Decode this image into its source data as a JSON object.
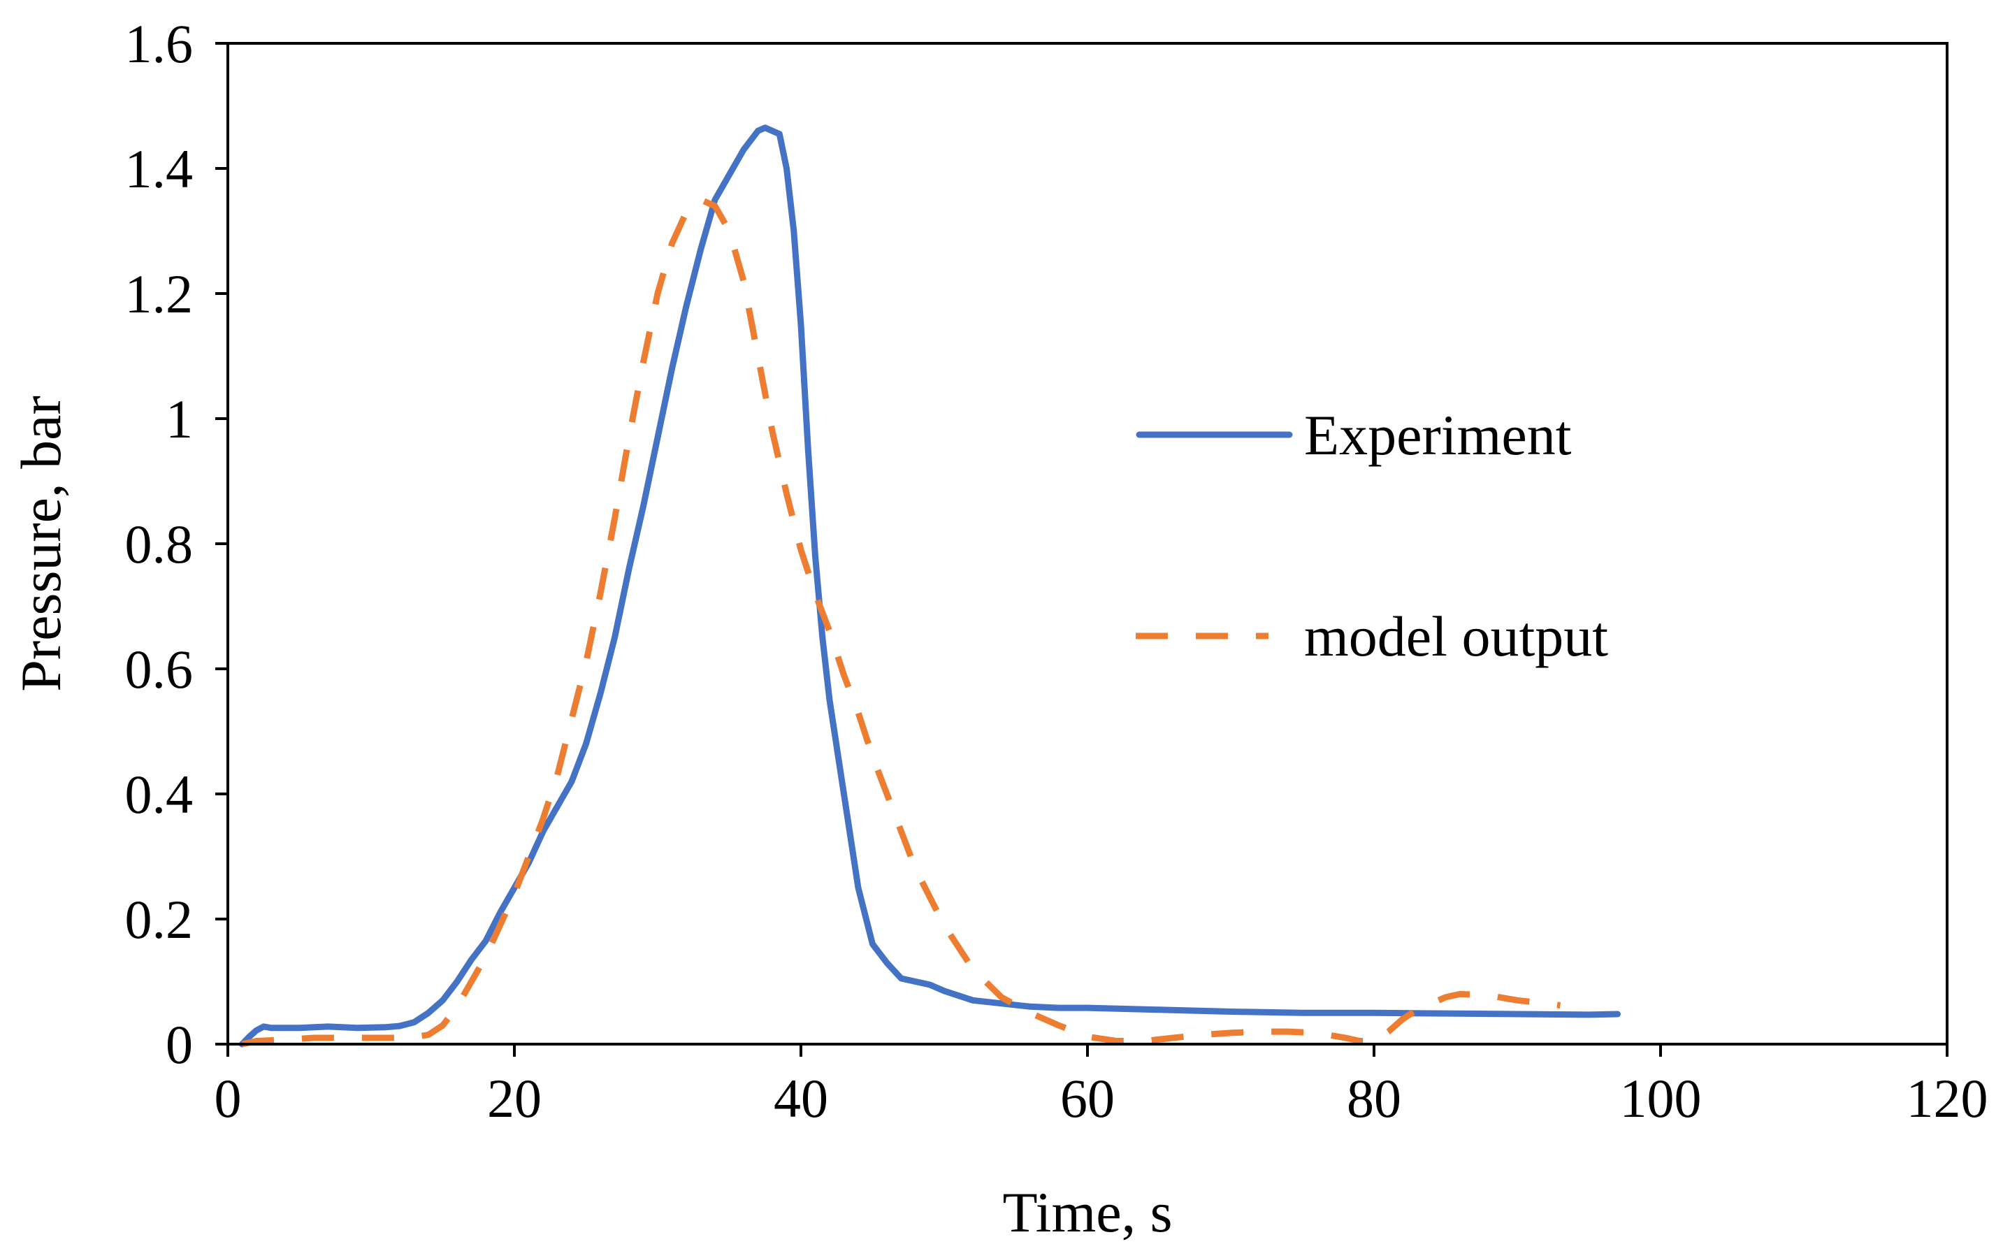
{
  "colors": {
    "experiment": "#4472C4",
    "model": "#ED7D31",
    "axis": "#000000",
    "background": "#ffffff"
  },
  "chart_data": {
    "type": "line",
    "title": "",
    "xlabel": "Time, s",
    "ylabel": "Pressure, bar",
    "xlim": [
      0,
      120
    ],
    "ylim": [
      0,
      1.6
    ],
    "xticks": [
      0,
      20,
      40,
      60,
      80,
      100,
      120
    ],
    "yticks": [
      0,
      0.2,
      0.4,
      0.6,
      0.8,
      1,
      1.2,
      1.4,
      1.6
    ],
    "xtick_labels": [
      "0",
      "20",
      "40",
      "60",
      "80",
      "100",
      "120"
    ],
    "ytick_labels": [
      "0",
      "0.2",
      "0.4",
      "0.6",
      "0.8",
      "1",
      "1.2",
      "1.4",
      "1.6"
    ],
    "grid": false,
    "legend_position": "center-right",
    "series": [
      {
        "name": "Experiment",
        "style": "solid",
        "color": "#4472C4",
        "x": [
          1,
          1.5,
          2,
          2.5,
          3,
          5,
          7,
          9,
          11,
          12,
          13,
          14,
          15,
          16,
          17,
          18,
          19,
          20,
          21,
          22,
          23,
          24,
          25,
          26,
          27,
          28,
          29,
          30,
          31,
          32,
          33,
          34,
          35,
          36,
          37,
          37.5,
          38,
          38.5,
          39,
          39.5,
          40,
          40.5,
          41,
          41.5,
          42,
          43,
          44,
          45,
          46,
          47,
          48,
          49,
          50,
          52,
          54,
          56,
          58,
          60,
          65,
          70,
          75,
          80,
          85,
          90,
          95,
          97
        ],
        "y": [
          0,
          0.012,
          0.022,
          0.028,
          0.026,
          0.026,
          0.028,
          0.026,
          0.027,
          0.029,
          0.035,
          0.05,
          0.07,
          0.1,
          0.135,
          0.165,
          0.21,
          0.25,
          0.29,
          0.34,
          0.38,
          0.42,
          0.48,
          0.56,
          0.65,
          0.76,
          0.86,
          0.97,
          1.08,
          1.18,
          1.27,
          1.35,
          1.39,
          1.43,
          1.46,
          1.465,
          1.46,
          1.455,
          1.4,
          1.3,
          1.15,
          0.95,
          0.78,
          0.65,
          0.55,
          0.4,
          0.25,
          0.16,
          0.13,
          0.105,
          0.1,
          0.095,
          0.085,
          0.07,
          0.065,
          0.06,
          0.058,
          0.058,
          0.055,
          0.052,
          0.05,
          0.05,
          0.049,
          0.048,
          0.047,
          0.048
        ]
      },
      {
        "name": "model output",
        "style": "dashed",
        "color": "#ED7D31",
        "x": [
          1,
          2,
          4,
          6,
          8,
          10,
          12,
          13,
          14,
          15,
          16,
          17,
          18,
          19,
          20,
          21,
          22,
          23,
          24,
          25,
          26,
          27,
          28,
          29,
          30,
          31,
          32,
          33,
          34,
          35,
          36,
          37,
          38,
          39,
          40,
          41,
          42,
          43,
          44,
          45,
          46,
          47,
          48,
          50,
          52,
          54,
          56,
          58,
          60,
          62,
          64,
          66,
          68,
          70,
          72,
          74,
          76,
          78,
          79,
          80,
          81,
          82,
          83,
          84,
          85,
          86,
          88,
          90,
          92,
          93
        ],
        "y": [
          0,
          0.005,
          0.007,
          0.01,
          0.01,
          0.01,
          0.01,
          0.011,
          0.015,
          0.03,
          0.06,
          0.1,
          0.14,
          0.19,
          0.24,
          0.3,
          0.36,
          0.43,
          0.52,
          0.61,
          0.72,
          0.84,
          0.97,
          1.09,
          1.2,
          1.28,
          1.33,
          1.35,
          1.34,
          1.3,
          1.22,
          1.1,
          0.98,
          0.88,
          0.79,
          0.72,
          0.66,
          0.59,
          0.53,
          0.46,
          0.4,
          0.34,
          0.28,
          0.19,
          0.12,
          0.075,
          0.05,
          0.03,
          0.012,
          0.005,
          0.005,
          0.01,
          0.015,
          0.018,
          0.02,
          0.02,
          0.018,
          0.01,
          0.005,
          0.005,
          0.02,
          0.04,
          0.055,
          0.065,
          0.075,
          0.08,
          0.078,
          0.07,
          0.065,
          0.062
        ]
      }
    ]
  }
}
